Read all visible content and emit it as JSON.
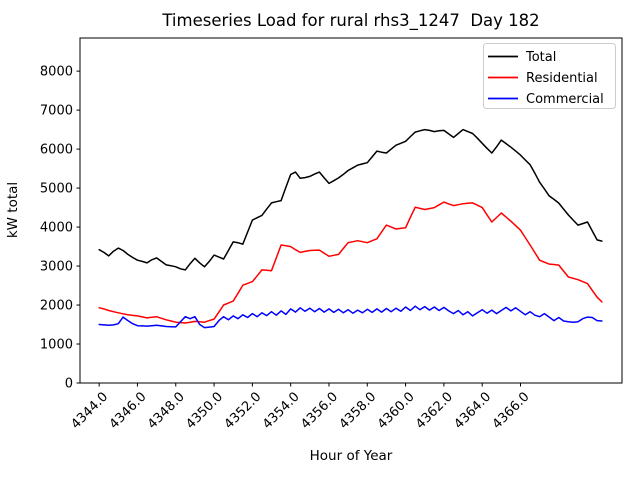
{
  "window": {
    "background": "#ffffff"
  },
  "chart_data": {
    "type": "line",
    "title": "Timeseries Load for rural rhs3_1247  Day 182",
    "xlabel": "Hour of Year",
    "ylabel": "kW total",
    "xlim": [
      4343.0,
      4371.3
    ],
    "ylim": [
      0,
      8850
    ],
    "grid": false,
    "legend_position": "upper right",
    "xticks": [
      4344,
      4346,
      4348,
      4350,
      4352,
      4354,
      4356,
      4358,
      4360,
      4362,
      4364,
      4366
    ],
    "xtick_labels": [
      "4344.0",
      "4346.0",
      "4348.0",
      "4350.0",
      "4352.0",
      "4354.0",
      "4356.0",
      "4358.0",
      "4360.0",
      "4362.0",
      "4364.0",
      "4366.0"
    ],
    "yticks": [
      0,
      1000,
      2000,
      3000,
      4000,
      5000,
      6000,
      7000,
      8000
    ],
    "ytick_labels": [
      "0",
      "1000",
      "2000",
      "3000",
      "4000",
      "5000",
      "6000",
      "7000",
      "8000"
    ],
    "x": [
      4344,
      4344.25,
      4344.5,
      4344.75,
      4345,
      4345.25,
      4345.5,
      4345.75,
      4346,
      4346.25,
      4346.5,
      4346.75,
      4347,
      4347.25,
      4347.5,
      4347.75,
      4348,
      4348.25,
      4348.5,
      4348.75,
      4349,
      4349.25,
      4349.5,
      4349.75,
      4350,
      4350.25,
      4350.5,
      4350.75,
      4351,
      4351.25,
      4351.5,
      4351.75,
      4352,
      4352.25,
      4352.5,
      4352.75,
      4353,
      4353.25,
      4353.5,
      4353.75,
      4354,
      4354.25,
      4354.5,
      4354.75,
      4355,
      4355.25,
      4355.5,
      4355.75,
      4356,
      4356.25,
      4356.5,
      4356.75,
      4357,
      4357.25,
      4357.5,
      4357.75,
      4358,
      4358.25,
      4358.5,
      4358.75,
      4359,
      4359.25,
      4359.5,
      4359.75,
      4360,
      4360.25,
      4360.5,
      4360.75,
      4361,
      4361.25,
      4361.5,
      4361.75,
      4362,
      4362.25,
      4362.5,
      4362.75,
      4363,
      4363.25,
      4363.5,
      4363.75,
      4364,
      4364.25,
      4364.5,
      4364.75,
      4365,
      4365.25,
      4365.5,
      4365.75,
      4366,
      4366.25,
      4366.5,
      4366.75,
      4367,
      4367.25,
      4367.5,
      4367.75,
      4368,
      4368.25,
      4368.5,
      4368.75,
      4369,
      4369.25,
      4369.5,
      4369.75,
      4370,
      4370.25
    ],
    "series": [
      {
        "name": "Total",
        "color": "#000000",
        "values": [
          3420,
          3350,
          3260,
          3380,
          3460,
          3400,
          3300,
          3220,
          3150,
          3120,
          3080,
          3160,
          3210,
          3120,
          3030,
          3010,
          2980,
          2930,
          2900,
          3060,
          3200,
          3080,
          2980,
          3120,
          3280,
          3230,
          3180,
          3400,
          3620,
          3600,
          3560,
          3870,
          4180,
          4240,
          4300,
          4460,
          4620,
          4650,
          4680,
          5020,
          5350,
          5410,
          5250,
          5270,
          5300,
          5360,
          5410,
          5260,
          5120,
          5190,
          5260,
          5350,
          5450,
          5520,
          5590,
          5620,
          5650,
          5800,
          5950,
          5920,
          5900,
          6000,
          6100,
          6150,
          6200,
          6320,
          6435,
          6470,
          6500,
          6480,
          6450,
          6470,
          6480,
          6390,
          6300,
          6400,
          6500,
          6450,
          6400,
          6280,
          6150,
          6020,
          5900,
          6060,
          6230,
          6140,
          6050,
          5950,
          5845,
          5720,
          5600,
          5380,
          5150,
          4980,
          4800,
          4710,
          4615,
          4460,
          4310,
          4180,
          4050,
          4090,
          4130,
          3900,
          3670,
          3640
        ]
      },
      {
        "name": "Residential",
        "color": "#ff0000",
        "values": [
          1930,
          1900,
          1860,
          1830,
          1800,
          1775,
          1750,
          1735,
          1720,
          1695,
          1670,
          1685,
          1700,
          1660,
          1620,
          1590,
          1560,
          1550,
          1540,
          1560,
          1580,
          1570,
          1560,
          1600,
          1640,
          1820,
          2000,
          2050,
          2100,
          2300,
          2510,
          2555,
          2600,
          2750,
          2900,
          2890,
          2880,
          3210,
          3540,
          3520,
          3500,
          3420,
          3350,
          3375,
          3400,
          3405,
          3410,
          3330,
          3250,
          3275,
          3300,
          3450,
          3600,
          3625,
          3650,
          3625,
          3600,
          3650,
          3700,
          3875,
          4050,
          4000,
          3950,
          3965,
          3980,
          4250,
          4510,
          4480,
          4450,
          4475,
          4500,
          4570,
          4640,
          4595,
          4550,
          4575,
          4600,
          4610,
          4620,
          4560,
          4500,
          4315,
          4130,
          4245,
          4360,
          4255,
          4150,
          4035,
          3920,
          3730,
          3540,
          3345,
          3150,
          3100,
          3050,
          3040,
          3025,
          2870,
          2720,
          2685,
          2650,
          2600,
          2550,
          2375,
          2200,
          2080
        ]
      },
      {
        "name": "Commercial",
        "color": "#0000ff",
        "values": [
          1500,
          1490,
          1480,
          1490,
          1520,
          1690,
          1600,
          1520,
          1470,
          1465,
          1460,
          1470,
          1480,
          1465,
          1450,
          1445,
          1440,
          1570,
          1700,
          1650,
          1700,
          1500,
          1420,
          1435,
          1450,
          1600,
          1700,
          1620,
          1720,
          1650,
          1750,
          1680,
          1780,
          1700,
          1800,
          1730,
          1830,
          1740,
          1850,
          1760,
          1900,
          1820,
          1930,
          1840,
          1920,
          1830,
          1910,
          1820,
          1900,
          1810,
          1890,
          1800,
          1880,
          1790,
          1870,
          1800,
          1890,
          1810,
          1900,
          1820,
          1910,
          1830,
          1920,
          1840,
          1950,
          1860,
          1970,
          1880,
          1960,
          1870,
          1950,
          1860,
          1940,
          1850,
          1780,
          1860,
          1750,
          1830,
          1720,
          1800,
          1880,
          1790,
          1870,
          1780,
          1860,
          1940,
          1850,
          1930,
          1840,
          1750,
          1830,
          1740,
          1700,
          1780,
          1690,
          1600,
          1680,
          1590,
          1570,
          1560,
          1570,
          1650,
          1690,
          1680,
          1600,
          1590
        ]
      }
    ]
  }
}
